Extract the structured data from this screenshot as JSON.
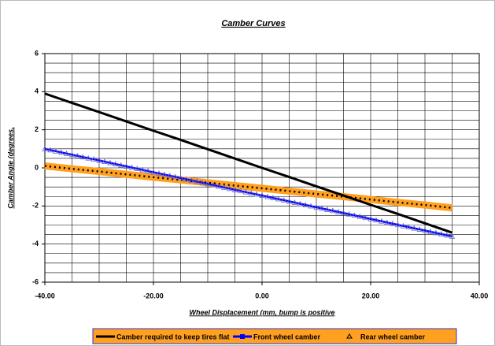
{
  "chart_data": {
    "type": "line",
    "title": "Camber Curves",
    "x_label": "Wheel Displacement (mm, bump is positive",
    "y_label": "Camber Angle (degrees,",
    "x": [
      -40,
      -35,
      -30,
      -25,
      -20,
      -15,
      -10,
      -5,
      0,
      5,
      10,
      15,
      20,
      25,
      30,
      35
    ],
    "series": [
      {
        "name": "Camber required to keep tires flat",
        "color": "#000000",
        "style": "line",
        "values": [
          3.9,
          3.41,
          2.93,
          2.44,
          1.95,
          1.47,
          0.98,
          0.49,
          0.0,
          -0.48,
          -0.97,
          -1.45,
          -1.94,
          -2.42,
          -2.91,
          -3.4
        ]
      },
      {
        "name": "Front wheel camber",
        "color": "#0000ff",
        "style": "line-square",
        "values": [
          1.0,
          0.69,
          0.39,
          0.08,
          -0.23,
          -0.53,
          -0.84,
          -1.15,
          -1.45,
          -1.76,
          -2.07,
          -2.37,
          -2.68,
          -2.99,
          -3.29,
          -3.6
        ]
      },
      {
        "name": "Rear wheel camber",
        "color": "#6666cc",
        "style": "triangle",
        "values": [
          1.0,
          0.69,
          0.39,
          0.08,
          -0.23,
          -0.53,
          -0.84,
          -1.15,
          -1.45,
          -1.76,
          -2.07,
          -2.37,
          -2.68,
          -2.99,
          -3.29,
          -3.6
        ]
      },
      {
        "color": "#ffa020",
        "style": "band-dotted",
        "values": [
          0.1,
          -0.05,
          -0.19,
          -0.34,
          -0.49,
          -0.63,
          -0.78,
          -0.93,
          -1.07,
          -1.22,
          -1.37,
          -1.51,
          -1.66,
          -1.81,
          -1.95,
          -2.1
        ]
      }
    ],
    "xlim": [
      -40,
      40
    ],
    "xticks": [
      {
        "value": -40,
        "label": "-40.00"
      },
      {
        "value": -20,
        "label": "-20.00"
      },
      {
        "value": 0,
        "label": "0.00"
      },
      {
        "value": 20,
        "label": "20.00"
      },
      {
        "value": 40,
        "label": "40.00"
      }
    ],
    "ylim": [
      -6,
      6
    ],
    "yticks": [
      -6,
      -4,
      -2,
      0,
      2,
      4,
      6
    ],
    "grid": true,
    "xgrid_step": 5,
    "ygrid_step": 0.5,
    "legend_position": "bottom",
    "legend_color": "#ffa020"
  }
}
